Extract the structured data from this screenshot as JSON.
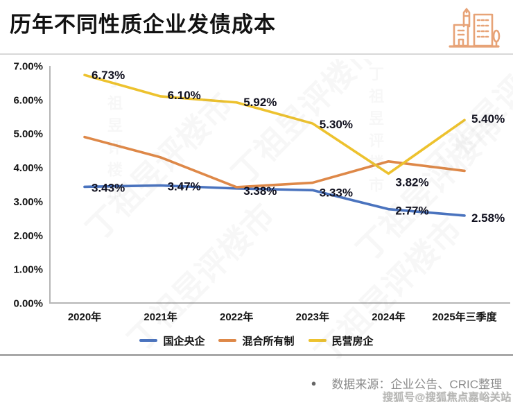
{
  "header": {
    "title": "历年不同性质企业发债成本",
    "icon": "city-buildings-icon",
    "icon_color": "#E7A377"
  },
  "chart_data": {
    "type": "line",
    "title": "历年不同性质企业发债成本",
    "categories": [
      "2020年",
      "2021年",
      "2022年",
      "2023年",
      "2024年",
      "2025年三季度"
    ],
    "y_ticks": [
      "0.00%",
      "1.00%",
      "2.00%",
      "3.00%",
      "4.00%",
      "5.00%",
      "6.00%",
      "7.00%"
    ],
    "ylim": [
      0,
      7
    ],
    "grid": false,
    "legend_position": "bottom",
    "axis_color": "#b5b5b5",
    "label_color": "#10101e",
    "series": [
      {
        "name": "国企央企",
        "color": "#4A73BE",
        "values": [
          3.43,
          3.47,
          3.38,
          3.33,
          2.77,
          2.58
        ],
        "labels": [
          "3.43%",
          "3.47%",
          "3.38%",
          "3.33%",
          "2.77%",
          "2.58%"
        ],
        "label_dy": [
          2,
          2,
          4,
          4,
          3,
          4
        ]
      },
      {
        "name": "混合所有制",
        "color": "#DE8848",
        "values": [
          4.9,
          4.3,
          3.42,
          3.55,
          4.18,
          3.9
        ],
        "labels": null,
        "label_dy": null
      },
      {
        "name": "民营房企",
        "color": "#EDC22E",
        "values": [
          6.73,
          6.1,
          5.92,
          5.3,
          3.82,
          5.4
        ],
        "labels": [
          "6.73%",
          "6.10%",
          "5.92%",
          "5.30%",
          "3.82%",
          "5.40%"
        ],
        "label_dy": [
          1,
          -1,
          0,
          2,
          13,
          -1
        ]
      }
    ]
  },
  "footer": {
    "bullet": "●",
    "source": "数据来源：企业公告、CRIC整理",
    "sohu_watermark": "搜狐号@搜狐焦点嘉峪关站"
  },
  "watermark": {
    "text": "丁祖昱评楼市"
  }
}
